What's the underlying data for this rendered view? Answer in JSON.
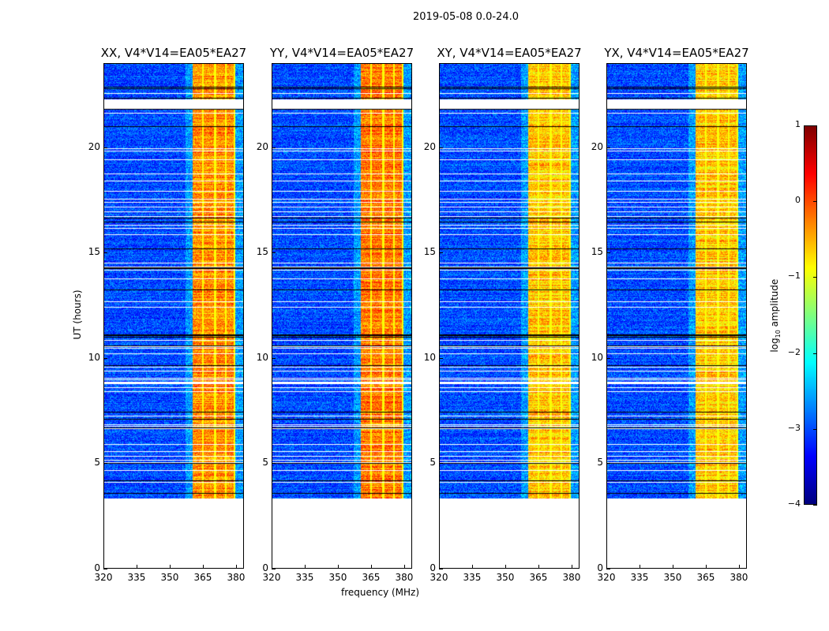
{
  "suptitle": "2019-05-08 0.0-24.0",
  "chart_data": {
    "type": "heatmap",
    "title": "2019-05-08 0.0-24.0",
    "xlabel": "frequency (MHz)",
    "ylabel": "UT (hours)",
    "xlim": [
      320,
      383.6
    ],
    "ylim": [
      0,
      24
    ],
    "xticks": [
      320,
      335,
      350,
      365,
      380
    ],
    "yticks": [
      0,
      5,
      10,
      15,
      20
    ],
    "data_ut_range": [
      3.4,
      24
    ],
    "high_amplitude_band_mhz": [
      360.3,
      379.8
    ],
    "background_log_amplitude": -3,
    "band_log_amplitude": -0.5,
    "panels": [
      {
        "title": "XX, V4*V14=EA05*EA27",
        "band_level": -0.3
      },
      {
        "title": "YY, V4*V14=EA05*EA27",
        "band_level": -0.2
      },
      {
        "title": "XY, V4*V14=EA05*EA27",
        "band_level": -0.6
      },
      {
        "title": "YX, V4*V14=EA05*EA27",
        "band_level": -0.6
      }
    ],
    "colorbar": {
      "label_prefix": "log",
      "label_sub": "10",
      "label_suffix": " amplitude",
      "range": [
        -4,
        1
      ],
      "ticks": [
        1,
        0,
        -1,
        -2,
        -3,
        -4
      ],
      "colormap": "jet"
    }
  }
}
